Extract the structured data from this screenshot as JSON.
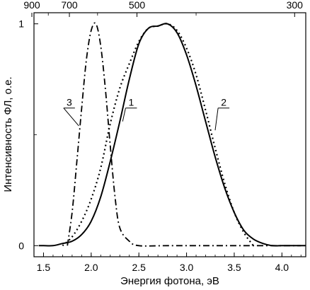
{
  "chart_data": {
    "type": "line",
    "xlabel": "Энергия фотона, эВ",
    "ylabel": "Интенсивность ФЛ, о.е.",
    "xlim": [
      1.4,
      4.25
    ],
    "ylim": [
      -0.05,
      1.05
    ],
    "x_ticks": [
      {
        "value": 1.5,
        "label": "1.5"
      },
      {
        "value": 2.0,
        "label": "2.0"
      },
      {
        "value": 2.5,
        "label": "2.5"
      },
      {
        "value": 3.0,
        "label": "3.0"
      },
      {
        "value": 3.5,
        "label": "3.5"
      },
      {
        "value": 4.0,
        "label": "4.0"
      }
    ],
    "y_ticks": [
      {
        "value": 0,
        "label": "0"
      },
      {
        "value": 1,
        "label": "1"
      }
    ],
    "top_axis_ticks": [
      {
        "value": 900,
        "label": "900"
      },
      {
        "value": 700,
        "label": "700"
      },
      {
        "value": 500,
        "label": "500"
      },
      {
        "value": 300,
        "label": "300"
      }
    ],
    "grid": false,
    "series": [
      {
        "label": "1",
        "style": "solid",
        "x": [
          1.45,
          1.5,
          1.6,
          1.7,
          1.8,
          1.9,
          2.0,
          2.1,
          2.2,
          2.3,
          2.4,
          2.5,
          2.6,
          2.7,
          2.8,
          2.9,
          3.0,
          3.1,
          3.2,
          3.3,
          3.4,
          3.5,
          3.6,
          3.7,
          3.8,
          3.9,
          4.0,
          4.1,
          4.2,
          4.25
        ],
        "y": [
          0.0,
          0.0,
          0.0,
          0.01,
          0.02,
          0.05,
          0.11,
          0.22,
          0.38,
          0.56,
          0.75,
          0.91,
          0.98,
          0.99,
          1.0,
          0.96,
          0.86,
          0.72,
          0.56,
          0.4,
          0.26,
          0.15,
          0.07,
          0.03,
          0.01,
          0.0,
          0.0,
          0.0,
          0.0,
          0.0
        ]
      },
      {
        "label": "2",
        "style": "dotted",
        "x": [
          1.7,
          1.8,
          1.9,
          2.0,
          2.1,
          2.2,
          2.3,
          2.4,
          2.5,
          2.6,
          2.7,
          2.8,
          2.9,
          3.0,
          3.1,
          3.2,
          3.3,
          3.4,
          3.5,
          3.6,
          3.7
        ],
        "y": [
          0.0,
          0.04,
          0.11,
          0.21,
          0.35,
          0.55,
          0.71,
          0.82,
          0.92,
          0.98,
          0.99,
          1.0,
          0.97,
          0.89,
          0.77,
          0.61,
          0.44,
          0.28,
          0.15,
          0.06,
          0.0
        ]
      },
      {
        "label": "3",
        "style": "dashdot",
        "x": [
          1.75,
          1.8,
          1.85,
          1.9,
          1.95,
          2.0,
          2.05,
          2.1,
          2.15,
          2.2,
          2.25,
          2.3,
          2.4,
          2.5,
          2.8,
          3.2,
          3.6,
          4.0,
          4.2
        ],
        "y": [
          0.0,
          0.15,
          0.38,
          0.62,
          0.84,
          0.97,
          1.0,
          0.9,
          0.7,
          0.45,
          0.22,
          0.08,
          0.02,
          0.0,
          0.0,
          0.0,
          0.0,
          0.0,
          0.0
        ]
      }
    ]
  }
}
